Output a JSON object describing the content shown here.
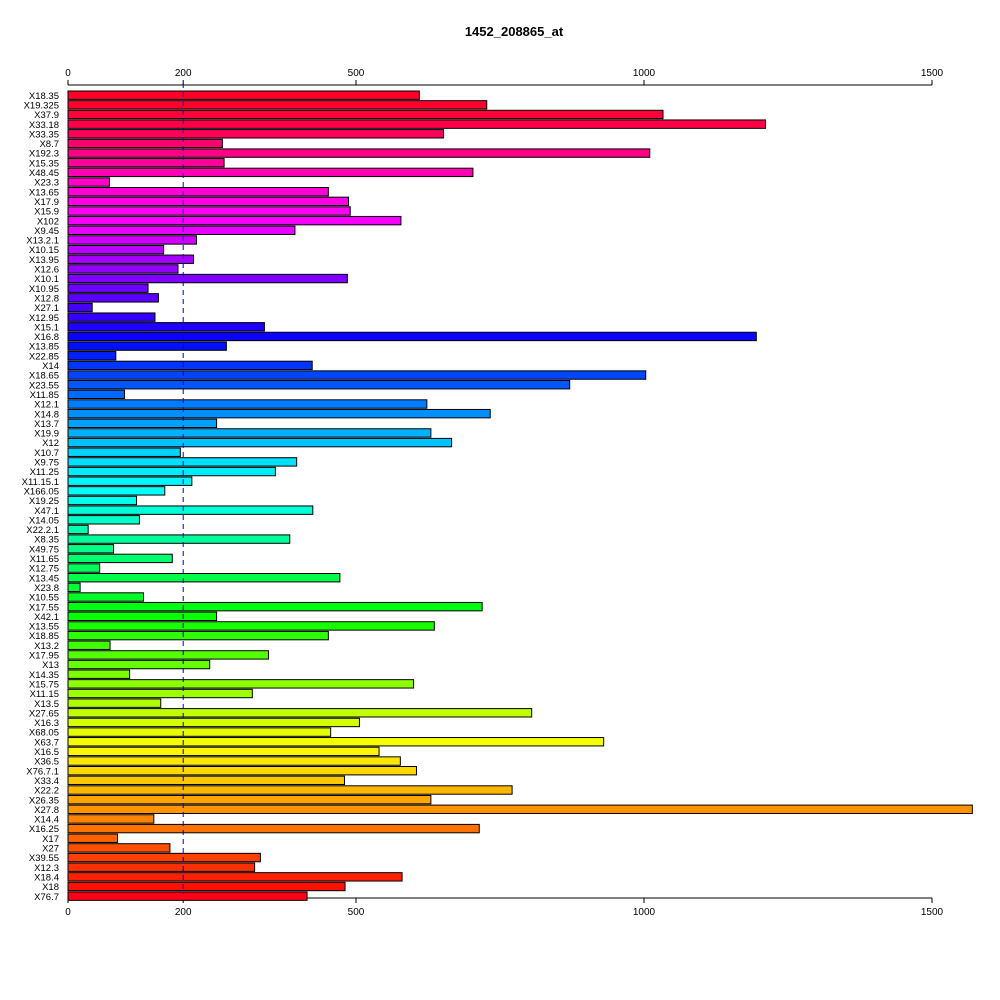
{
  "chart_data": {
    "type": "bar",
    "orientation": "horizontal",
    "title": "1452_208865_at",
    "xlabel": "",
    "ylabel": "",
    "xlim": [
      0,
      1570
    ],
    "xticks": [
      0,
      200,
      500,
      1000,
      1500
    ],
    "xtick_labels": [
      "0",
      "200",
      "500",
      "1000",
      "1500"
    ],
    "reference_line": 200,
    "grid": false,
    "categories": [
      "X18.35",
      "X19.325",
      "X37.9",
      "X33.18",
      "X33.35",
      "X8.7",
      "X192.3",
      "X15.35",
      "X48.45",
      "X23.3",
      "X13.65",
      "X17.9",
      "X15.9",
      "X102",
      "X9.45",
      "X13.2.1",
      "X10.15",
      "X13.95",
      "X12.6",
      "X10.1",
      "X10.95",
      "X12.8",
      "X27.1",
      "X12.95",
      "X15.1",
      "X16.8",
      "X13.85",
      "X22.85",
      "X14",
      "X18.65",
      "X23.55",
      "X11.85",
      "X12.1",
      "X14.8",
      "X13.7",
      "X19.9",
      "X12",
      "X10.7",
      "X9.75",
      "X11.25",
      "X11.15.1",
      "X166.05",
      "X19.25",
      "X47.1",
      "X14.05",
      "X22.2.1",
      "X8.35",
      "X49.75",
      "X11.65",
      "X12.75",
      "X13.45",
      "X23.8",
      "X10.55",
      "X17.55",
      "X42.1",
      "X13.55",
      "X18.85",
      "X13.2",
      "X17.95",
      "X13",
      "X14.35",
      "X15.75",
      "X11.15",
      "X13.5",
      "X27.65",
      "X16.3",
      "X68.05",
      "X63.7",
      "X16.5",
      "X36.5",
      "X76.7.1",
      "X33.4",
      "X22.2",
      "X26.35",
      "X27.8",
      "X14.4",
      "X16.25",
      "X17",
      "X27",
      "X39.55",
      "X12.3",
      "X18.4",
      "X18",
      "X76.7"
    ],
    "values": [
      610,
      727,
      1033,
      1211,
      652,
      268,
      1010,
      271,
      703,
      72,
      452,
      487,
      490,
      578,
      394,
      223,
      166,
      218,
      191,
      485,
      139,
      157,
      42,
      151,
      341,
      1195,
      275,
      83,
      424,
      1003,
      871,
      98,
      623,
      733,
      258,
      630,
      666,
      195,
      397,
      360,
      215,
      168,
      119,
      425,
      124,
      35,
      385,
      79,
      181,
      55,
      472,
      21,
      131,
      719,
      258,
      636,
      452,
      73,
      348,
      246,
      107,
      600,
      320,
      161,
      805,
      506,
      456,
      930,
      540,
      577,
      605,
      480,
      771,
      630,
      1570,
      149,
      714,
      86,
      177,
      334,
      324,
      580,
      481,
      415
    ],
    "bar_colors": [
      "#FF0029",
      "#FF002E",
      "#FF0038",
      "#FF0046",
      "#FF0058",
      "#FF006E",
      "#FF0085",
      "#FF009B",
      "#FF00B2",
      "#FF00C4",
      "#FF00D7",
      "#FF00E6",
      "#FF00F2",
      "#F800FF",
      "#E600FF",
      "#D000FF",
      "#BA00FF",
      "#A600FF",
      "#9400FF",
      "#8000FF",
      "#6C00FF",
      "#5A00FF",
      "#4600FF",
      "#3300FF",
      "#2000FF",
      "#0C00FF",
      "#0010FF",
      "#0022FF",
      "#0035FF",
      "#0046FF",
      "#0057FF",
      "#006AFF",
      "#007DFF",
      "#008FFF",
      "#00A0FF",
      "#00B1FF",
      "#00C2FF",
      "#00D1FF",
      "#00DFFF",
      "#00ECFF",
      "#00F7FF",
      "#00FFF7",
      "#00FFEA",
      "#00FFD9",
      "#00FFC6",
      "#00FFB1",
      "#00FF9B",
      "#00FF85",
      "#00FF70",
      "#00FF5C",
      "#00FF49",
      "#00FF36",
      "#00FF24",
      "#00FF12",
      "#07FF00",
      "#1AFF00",
      "#2DFF00",
      "#40FF00",
      "#53FF00",
      "#66FF00",
      "#79FF00",
      "#8CFF00",
      "#9EFF00",
      "#B0FF00",
      "#C2FF00",
      "#D4FF00",
      "#E6FF00",
      "#F5FF00",
      "#FFF500",
      "#FFE600",
      "#FFD700",
      "#FFC700",
      "#FFB600",
      "#FFA500",
      "#FF9400",
      "#FF8300",
      "#FF7200",
      "#FF6100",
      "#FF5000",
      "#FF4000",
      "#FF3000",
      "#FF2000",
      "#FF1000",
      "#FF0018"
    ]
  }
}
